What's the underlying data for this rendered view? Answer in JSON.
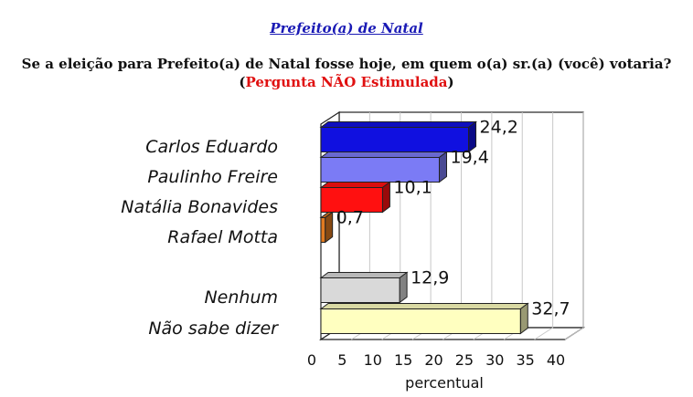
{
  "header": {
    "kicker": "Prefeito(a) de Natal",
    "question": "Se a eleição para Prefeito(a) de Natal fosse hoje, em quem o(a) sr.(a) (você) votaria?",
    "sub_open": "(",
    "sub_red": "Pergunta NÃO Estimulada",
    "sub_close": ")"
  },
  "chart_data": {
    "type": "bar",
    "orientation": "horizontal",
    "categories": [
      "Carlos Eduardo",
      "Paulinho Freire",
      "Natália Bonavides",
      "Rafael Motta",
      "Nenhum",
      "Não sabe dizer"
    ],
    "values": [
      24.2,
      19.4,
      10.1,
      0.7,
      12.9,
      32.7
    ],
    "value_labels": [
      "24,2",
      "19,4",
      "10,1",
      "0,7",
      "12,9",
      "32,7"
    ],
    "colors": [
      "#1010e0",
      "#7b7bf5",
      "#ff1010",
      "#e07a20",
      "#d9d9d9",
      "#ffffc0"
    ],
    "xlabel": "percentual",
    "xlim": [
      0,
      40
    ],
    "xticks": [
      0,
      5,
      10,
      15,
      20,
      25,
      30,
      35,
      40
    ],
    "grid": true,
    "three_d": true
  }
}
